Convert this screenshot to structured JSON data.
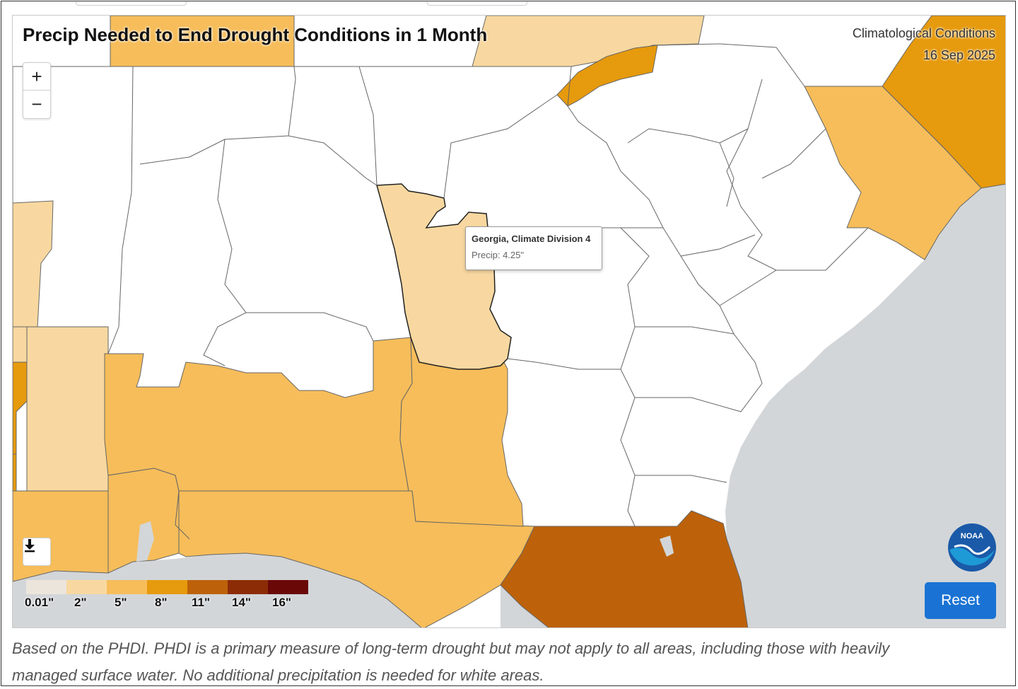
{
  "map": {
    "title": "Precip Needed to End Drought Conditions in 1 Month",
    "meta_line1": "Climatological Conditions",
    "meta_line2": "16 Sep 2025",
    "zoom_in_label": "+",
    "zoom_out_label": "−"
  },
  "legend": {
    "colors": [
      "#ece5dc",
      "#f8d8a0",
      "#f6bd5a",
      "#e69a0d",
      "#bd620a",
      "#8c2c06",
      "#6a0808"
    ],
    "labels": [
      "0.01\"",
      "2\"",
      "5\"",
      "8\"",
      "11\"",
      "14\"",
      "16\""
    ]
  },
  "tooltip": {
    "title": "Georgia, Climate Division 4",
    "value": "Precip: 4.25\""
  },
  "colors": {
    "ocean": "#d3d6d9",
    "no_need": "#ffffff",
    "border": "#555555",
    "reset_button": "#1a73d4"
  },
  "buttons": {
    "reset_label": "Reset"
  },
  "logo": {
    "text": "NOAA"
  },
  "caption": {
    "line1": "Based on the PHDI. PHDI is a primary measure of long-term drought but may not apply to all areas, including those with heavily",
    "line2": "managed surface water. No additional precipitation is needed for white areas."
  }
}
